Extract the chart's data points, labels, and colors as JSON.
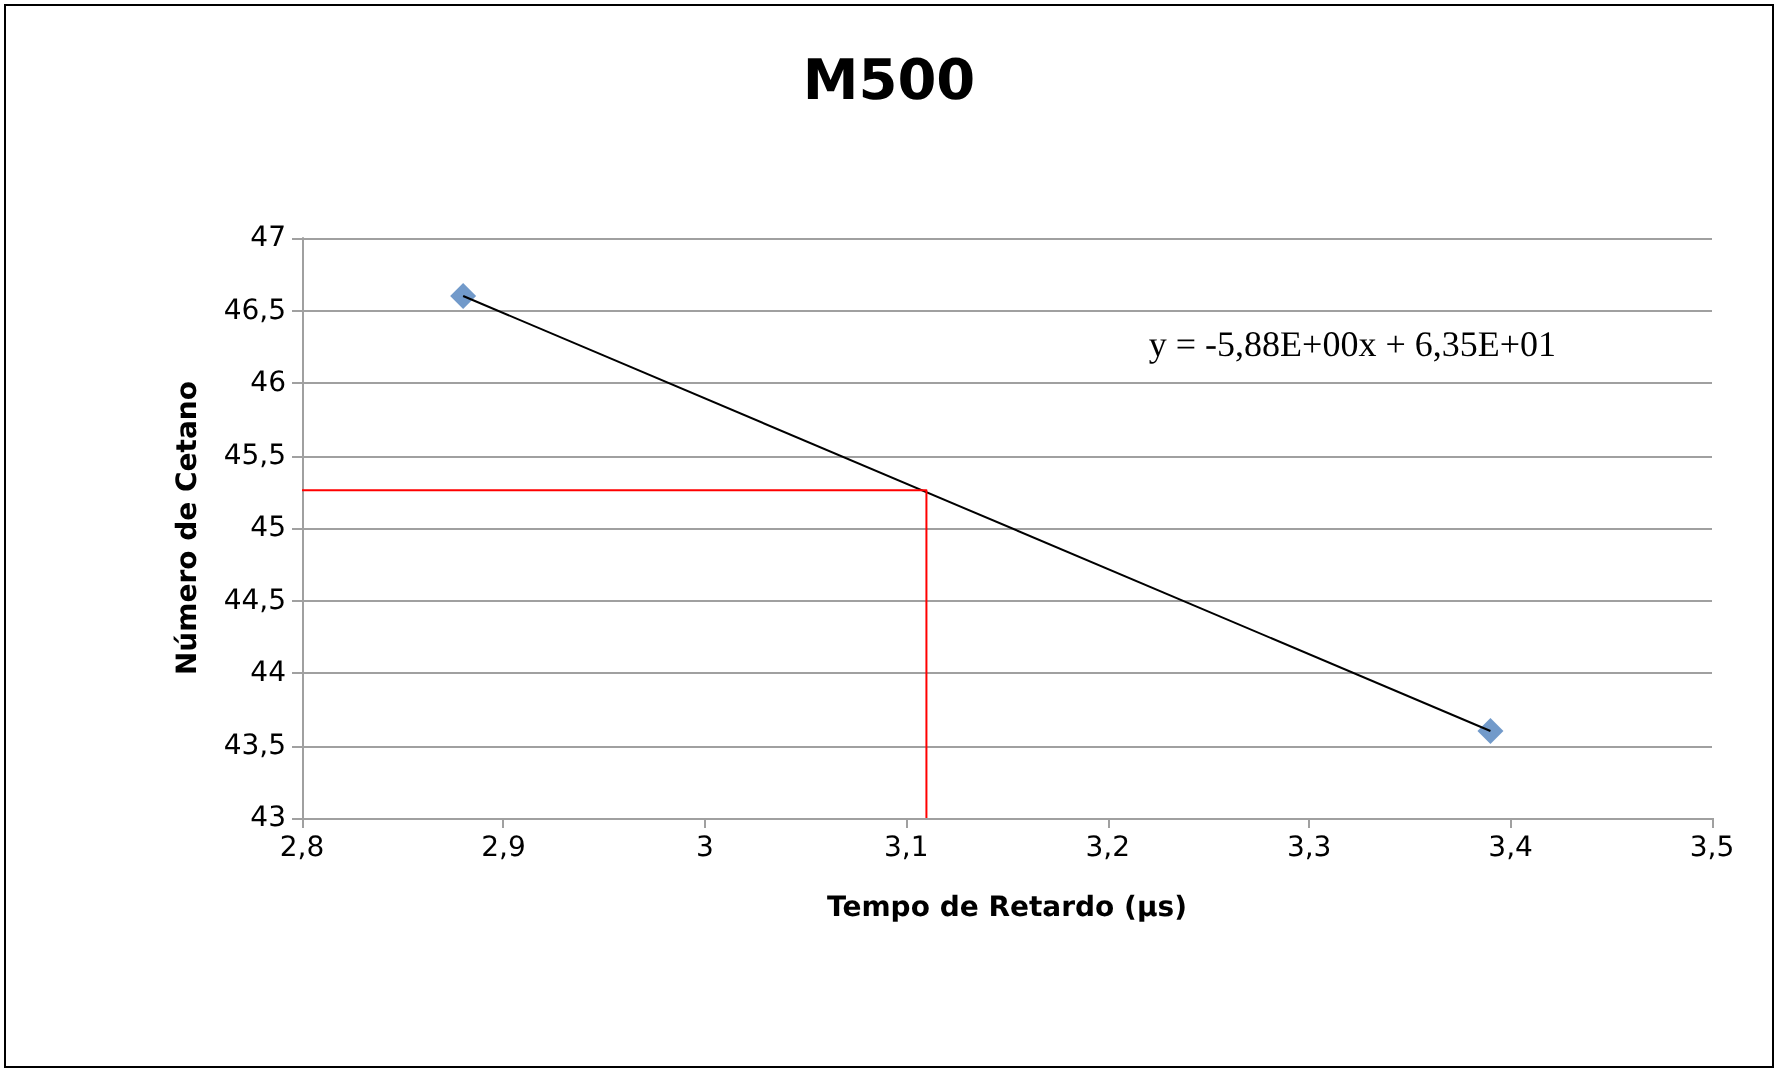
{
  "chart_data": {
    "type": "scatter",
    "title": "M500",
    "xlabel": "Tempo de Retardo (µs)",
    "ylabel": "Número de Cetano",
    "xlim": [
      2.8,
      3.5
    ],
    "xticks": [
      {
        "value": 2.8,
        "label": "2,8"
      },
      {
        "value": 2.9,
        "label": "2,9"
      },
      3,
      {
        "value": 3.1,
        "label": "3,1"
      },
      {
        "value": 3.2,
        "label": "3,2"
      },
      {
        "value": 3.3,
        "label": "3,3"
      },
      {
        "value": 3.4,
        "label": "3,4"
      },
      {
        "value": 3.5,
        "label": "3,5"
      }
    ],
    "ylim": [
      43,
      47
    ],
    "yticks": [
      43,
      {
        "value": 43.5,
        "label": "43,5"
      },
      44,
      {
        "value": 44.5,
        "label": "44,5"
      },
      45,
      {
        "value": 45.5,
        "label": "45,5"
      },
      46,
      {
        "value": 46.5,
        "label": "46,5"
      },
      47
    ],
    "grid": "y",
    "marker": "diamond",
    "series": [
      {
        "color": "#4f81bd",
        "x": [
          2.88,
          3.39
        ],
        "values": [
          46.6,
          43.6
        ]
      },
      {
        "type": "line",
        "color": "#000000",
        "marker": "none",
        "x": [
          2.88,
          3.39
        ],
        "values": [
          46.6,
          43.6
        ]
      },
      {
        "type": "line",
        "color": "#ff0000",
        "marker": "none",
        "x": [
          2.8,
          3.11,
          3.11
        ],
        "values": [
          45.26,
          45.26,
          43
        ]
      }
    ],
    "annotations": [
      "y = -5,88E+00x + 6,35E+01"
    ]
  }
}
